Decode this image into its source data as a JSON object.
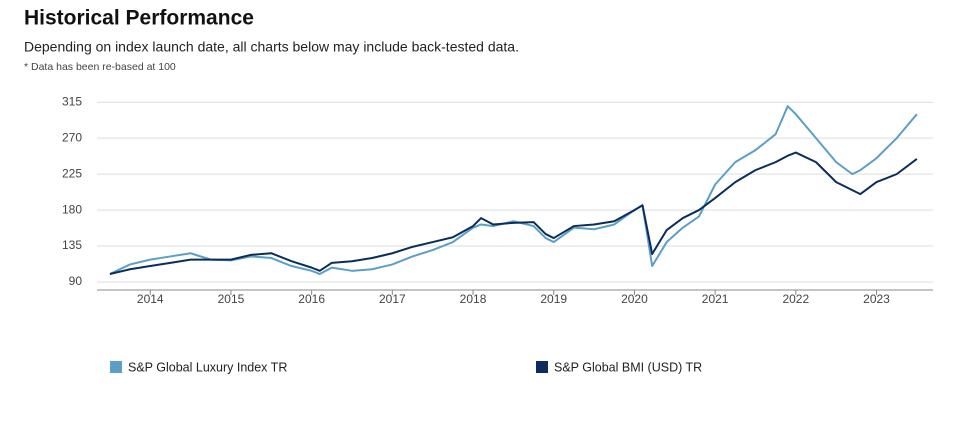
{
  "title": "Historical Performance",
  "subtitle": "Depending on index launch date, all charts below may include back-tested data.",
  "note": "* Data has been re-based at 100",
  "chart_data": {
    "type": "line",
    "x": [
      2013.5,
      2013.75,
      2014.0,
      2014.25,
      2014.5,
      2014.75,
      2015.0,
      2015.25,
      2015.5,
      2015.75,
      2016.0,
      2016.1,
      2016.25,
      2016.5,
      2016.75,
      2017.0,
      2017.25,
      2017.5,
      2017.75,
      2018.0,
      2018.1,
      2018.25,
      2018.5,
      2018.75,
      2018.9,
      2019.0,
      2019.25,
      2019.5,
      2019.75,
      2020.0,
      2020.1,
      2020.22,
      2020.4,
      2020.6,
      2020.8,
      2021.0,
      2021.25,
      2021.5,
      2021.75,
      2021.9,
      2022.0,
      2022.25,
      2022.5,
      2022.7,
      2022.8,
      2023.0,
      2023.25,
      2023.5
    ],
    "series": [
      {
        "name": "S&P Global Luxury Index TR",
        "color": "#5b9fc7",
        "values": [
          100,
          112,
          118,
          122,
          126,
          118,
          117,
          122,
          120,
          110,
          104,
          100,
          108,
          104,
          106,
          112,
          122,
          130,
          140,
          158,
          162,
          160,
          166,
          160,
          145,
          140,
          158,
          156,
          162,
          180,
          186,
          110,
          140,
          158,
          172,
          212,
          240,
          255,
          275,
          310,
          300,
          270,
          240,
          225,
          230,
          245,
          270,
          300
        ]
      },
      {
        "name": "S&P Global BMI (USD) TR",
        "color": "#0c2d5b",
        "values": [
          100,
          106,
          110,
          114,
          118,
          118,
          118,
          124,
          126,
          116,
          108,
          104,
          114,
          116,
          120,
          126,
          134,
          140,
          146,
          160,
          170,
          162,
          164,
          165,
          150,
          145,
          160,
          162,
          166,
          180,
          186,
          125,
          155,
          170,
          180,
          195,
          215,
          230,
          240,
          248,
          252,
          240,
          215,
          205,
          200,
          215,
          225,
          244
        ]
      }
    ],
    "xlim": [
      2013.34,
      2023.7
    ],
    "xticks": [
      2014,
      2015,
      2016,
      2017,
      2018,
      2019,
      2020,
      2021,
      2022,
      2023
    ],
    "ylim": [
      80,
      324
    ],
    "yticks": [
      90,
      135,
      180,
      225,
      270,
      315
    ],
    "grid": true
  }
}
